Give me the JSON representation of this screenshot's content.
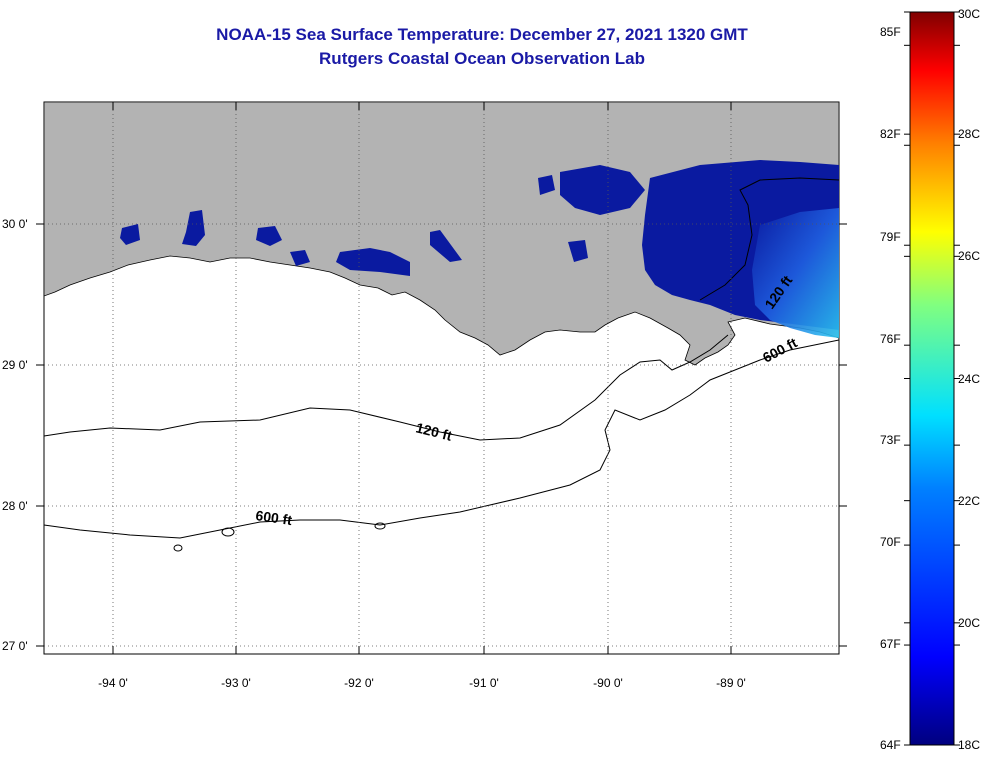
{
  "title": {
    "line1": "NOAA-15 Sea Surface Temperature:  December 27, 2021 1320 GMT",
    "line2": "Rutgers Coastal Ocean Observation Lab"
  },
  "map": {
    "lat_labels": [
      "30 0'",
      "29 0'",
      "28 0'",
      "27 0'"
    ],
    "lon_labels": [
      "-94 0'",
      "-93 0'",
      "-92 0'",
      "-91 0'",
      "-90 0'",
      "-89 0'"
    ],
    "contours": [
      {
        "label": "120 ft",
        "depth": "120 ft"
      },
      {
        "label": "600 ft",
        "depth": "600 ft"
      },
      {
        "label": "120 ft",
        "depth": "120 ft"
      },
      {
        "label": "600 ft",
        "depth": "600 ft"
      }
    ],
    "colors": {
      "land": "#b3b3b3",
      "ocean": "#ffffff",
      "cold_water": "#0a1aa0",
      "contour": "#000000"
    }
  },
  "colorbar": {
    "fahrenheit_labels": [
      "85F",
      "82F",
      "79F",
      "76F",
      "73F",
      "70F",
      "67F",
      "64F"
    ],
    "celsius_labels": [
      "30C",
      "28C",
      "26C",
      "24C",
      "22C",
      "20C",
      "18C"
    ],
    "range_c": [
      18,
      30
    ],
    "range_f": [
      64,
      86
    ]
  }
}
